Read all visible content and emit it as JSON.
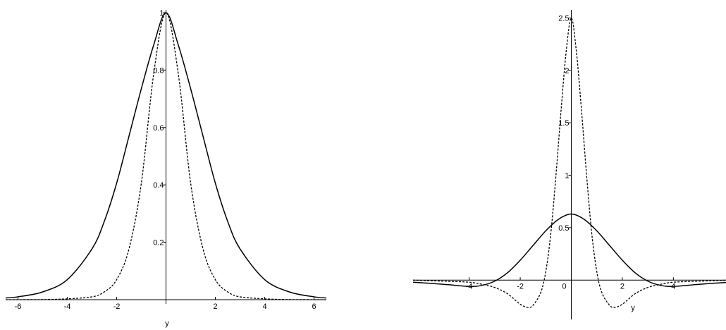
{
  "chart_data": [
    {
      "type": "line",
      "xlabel": "y",
      "ylabel": "",
      "xlim": [
        -6.5,
        6.5
      ],
      "ylim": [
        0,
        1.0
      ],
      "x_ticks": [
        -6,
        -4,
        -2,
        2,
        4,
        6
      ],
      "y_ticks": [
        0.2,
        0.4,
        0.6,
        0.8,
        1
      ],
      "x_tick_labels": [
        "-6",
        "-4",
        "-2",
        "2",
        "4",
        "6"
      ],
      "y_tick_labels": [
        "0.2",
        "0.4",
        "0.6",
        "0.8",
        "1"
      ],
      "series": [
        {
          "style": "solid",
          "x": [
            -6.5,
            -6,
            -5,
            -4,
            -3,
            -2.5,
            -2,
            -1.5,
            -1,
            -0.5,
            0,
            0.5,
            1,
            1.5,
            2,
            2.5,
            3,
            4,
            5,
            6,
            6.5
          ],
          "y": [
            0.006,
            0.01,
            0.027,
            0.07,
            0.177,
            0.273,
            0.406,
            0.57,
            0.735,
            0.887,
            1.0,
            0.887,
            0.735,
            0.57,
            0.406,
            0.273,
            0.177,
            0.07,
            0.027,
            0.01,
            0.006
          ]
        },
        {
          "style": "dashed",
          "x": [
            -6.5,
            -5,
            -4,
            -3,
            -2.5,
            -2,
            -1.5,
            -1,
            -0.5,
            0,
            0.5,
            1,
            1.5,
            2,
            2.5,
            3,
            4,
            5,
            6.5
          ],
          "y": [
            0.0,
            0.0005,
            0.003,
            0.01,
            0.027,
            0.07,
            0.177,
            0.406,
            0.786,
            1.0,
            0.786,
            0.406,
            0.177,
            0.07,
            0.027,
            0.01,
            0.003,
            0.0005,
            0.0
          ]
        }
      ]
    },
    {
      "type": "line",
      "xlabel": "y",
      "ylabel": "",
      "xlim": [
        -6.2,
        6.2
      ],
      "ylim": [
        -0.2,
        2.55
      ],
      "x_ticks": [
        -4,
        -2,
        0,
        2,
        4
      ],
      "y_ticks": [
        0.5,
        1,
        1.5,
        2,
        2.5
      ],
      "x_tick_labels": [
        "-4",
        "-2",
        "0",
        "2",
        "4"
      ],
      "y_tick_labels": [
        "0.5",
        "1",
        "1.5",
        "2",
        "2.5"
      ],
      "series": [
        {
          "style": "solid",
          "x": [
            -6.2,
            -5,
            -4,
            -3.5,
            -3,
            -2.5,
            -2,
            -1.5,
            -1,
            -0.5,
            0,
            0.5,
            1,
            1.5,
            2,
            2.5,
            3,
            3.5,
            4,
            5,
            6.2
          ],
          "y": [
            -0.02,
            -0.04,
            -0.06,
            -0.05,
            -0.01,
            0.07,
            0.19,
            0.33,
            0.47,
            0.58,
            0.63,
            0.58,
            0.47,
            0.33,
            0.19,
            0.07,
            -0.01,
            -0.05,
            -0.06,
            -0.04,
            -0.02
          ]
        },
        {
          "style": "dashed",
          "x": [
            -6.2,
            -5,
            -4,
            -3.5,
            -3,
            -2.5,
            -2,
            -1.7,
            -1.5,
            -1.2,
            -1,
            -0.8,
            -0.6,
            -0.4,
            -0.2,
            0,
            0.2,
            0.4,
            0.6,
            0.8,
            1,
            1.2,
            1.5,
            1.7,
            2,
            2.5,
            3,
            3.5,
            4,
            5,
            6.2
          ],
          "y": [
            0.0,
            -0.01,
            -0.02,
            -0.04,
            -0.07,
            -0.13,
            -0.23,
            -0.26,
            -0.24,
            -0.12,
            0.08,
            0.45,
            1.0,
            1.62,
            2.18,
            2.5,
            2.18,
            1.62,
            1.0,
            0.45,
            0.08,
            -0.12,
            -0.24,
            -0.26,
            -0.23,
            -0.13,
            -0.07,
            -0.04,
            -0.02,
            -0.01,
            0.0
          ]
        }
      ]
    }
  ]
}
